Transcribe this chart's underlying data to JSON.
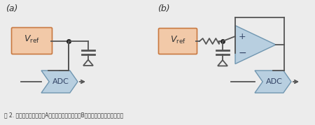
{
  "bg_color": "#ececec",
  "panel_a_label": "(a)",
  "panel_b_label": "(b)",
  "vref_color": "#f2c9a8",
  "vref_border": "#c87840",
  "adc_color": "#b8cfe0",
  "adc_border": "#7096b0",
  "opamp_color": "#b8cfe0",
  "opamp_border": "#7096b0",
  "caption": "图 2. 电压基准通常需要（A）一只層路电容，或（B）一只带缓冲放大器的电容",
  "wire_color": "#555555",
  "dot_color": "#222222"
}
